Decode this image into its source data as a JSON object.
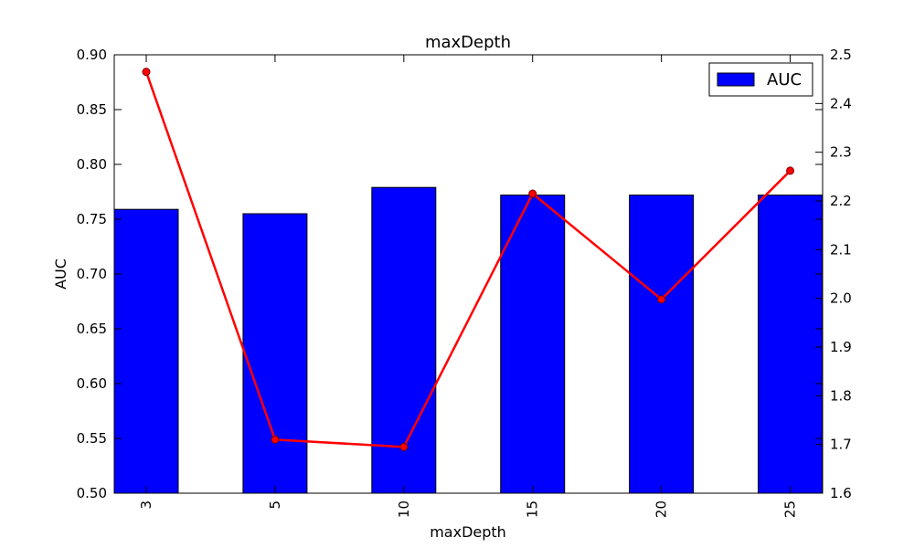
{
  "chart_data": {
    "type": "bar",
    "title": "maxDepth",
    "xlabel": "maxDepth",
    "ylabel": "AUC",
    "categories": [
      "3",
      "5",
      "10",
      "15",
      "20",
      "25"
    ],
    "ylim": [
      0.5,
      0.9
    ],
    "yticks": [
      "0.50",
      "0.55",
      "0.60",
      "0.65",
      "0.70",
      "0.75",
      "0.80",
      "0.85",
      "0.90"
    ],
    "y2lim": [
      1.6,
      2.5
    ],
    "y2ticks": [
      "1.6",
      "1.7",
      "1.8",
      "1.9",
      "2.0",
      "2.1",
      "2.2",
      "2.3",
      "2.4",
      "2.5"
    ],
    "grid": false,
    "legend_position": "top-right",
    "series": [
      {
        "name": "AUC",
        "kind": "bar",
        "axis": "left",
        "color": "#0000ff",
        "values": [
          0.759,
          0.755,
          0.779,
          0.772,
          0.772,
          0.772
        ]
      },
      {
        "kind": "line",
        "axis": "right",
        "color": "#ff0000",
        "marker": "circle",
        "values": [
          2.465,
          1.71,
          1.695,
          2.215,
          1.998,
          2.262
        ]
      }
    ]
  }
}
